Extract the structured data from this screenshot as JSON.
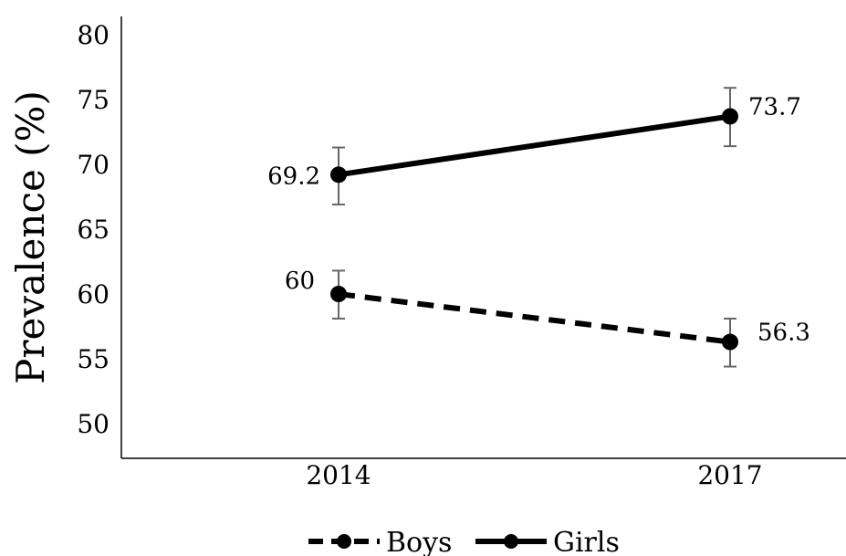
{
  "chart_data": {
    "type": "line",
    "ylabel": "Prevalence (%)",
    "xlabel": "",
    "categories": [
      "2014",
      "2017"
    ],
    "ylim": [
      50,
      80
    ],
    "yticks": [
      50,
      55,
      60,
      65,
      70,
      75,
      80
    ],
    "grid": false,
    "legend_position": "bottom",
    "series": [
      {
        "name": "Boys",
        "line_style": "dashed",
        "color": "#000000",
        "values": [
          60,
          56.3
        ],
        "labels": [
          "60",
          "56.3"
        ],
        "error_low": [
          58.1,
          54.4
        ],
        "error_high": [
          61.8,
          58.1
        ]
      },
      {
        "name": "Girls",
        "line_style": "solid",
        "color": "#000000",
        "values": [
          69.2,
          73.7
        ],
        "labels": [
          "69.2",
          "73.7"
        ],
        "error_low": [
          66.9,
          71.4
        ],
        "error_high": [
          71.3,
          75.9
        ]
      }
    ],
    "error_bar_color": "#666666"
  }
}
